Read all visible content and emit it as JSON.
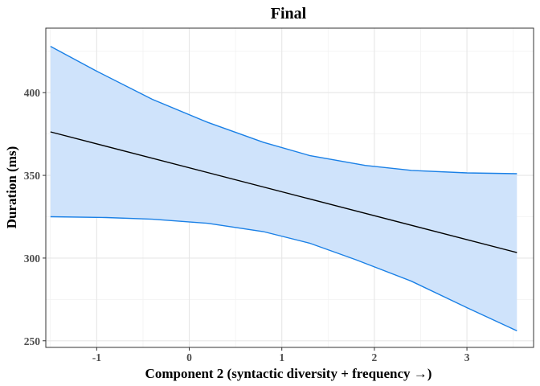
{
  "chart_data": {
    "type": "line",
    "title": "Final",
    "xlabel": "Component 2 (syntactic diversity + frequency →)",
    "ylabel": "Duration (ms)",
    "xlim": [
      -1.55,
      3.72
    ],
    "ylim": [
      246,
      439
    ],
    "x_ticks": [
      -1,
      0,
      1,
      2,
      3
    ],
    "y_ticks": [
      250,
      300,
      350,
      400
    ],
    "x_tick_labels": [
      "-1",
      "0",
      "1",
      "2",
      "3"
    ],
    "y_tick_labels": [
      "250",
      "300",
      "350",
      "400"
    ],
    "grid": true,
    "series": [
      {
        "role": "fit",
        "color": "#000000",
        "x": [
          -1.5,
          3.54
        ],
        "y": [
          376.3,
          303.3
        ]
      },
      {
        "role": "ci_upper",
        "color": "#1a80e6",
        "x": [
          -1.5,
          -1.0,
          -0.4,
          0.2,
          0.8,
          1.3,
          1.9,
          2.4,
          3.0,
          3.54
        ],
        "y": [
          428,
          413,
          396,
          382,
          370,
          362,
          356,
          353,
          351.5,
          351
        ]
      },
      {
        "role": "ci_lower",
        "color": "#1a80e6",
        "x": [
          -1.5,
          -0.9,
          -0.4,
          0.2,
          0.8,
          1.3,
          1.8,
          2.4,
          3.0,
          3.54
        ],
        "y": [
          325,
          324.5,
          323.5,
          321,
          316,
          309,
          299,
          286,
          270,
          256
        ]
      }
    ],
    "band_fill": "#cfe3fb"
  }
}
